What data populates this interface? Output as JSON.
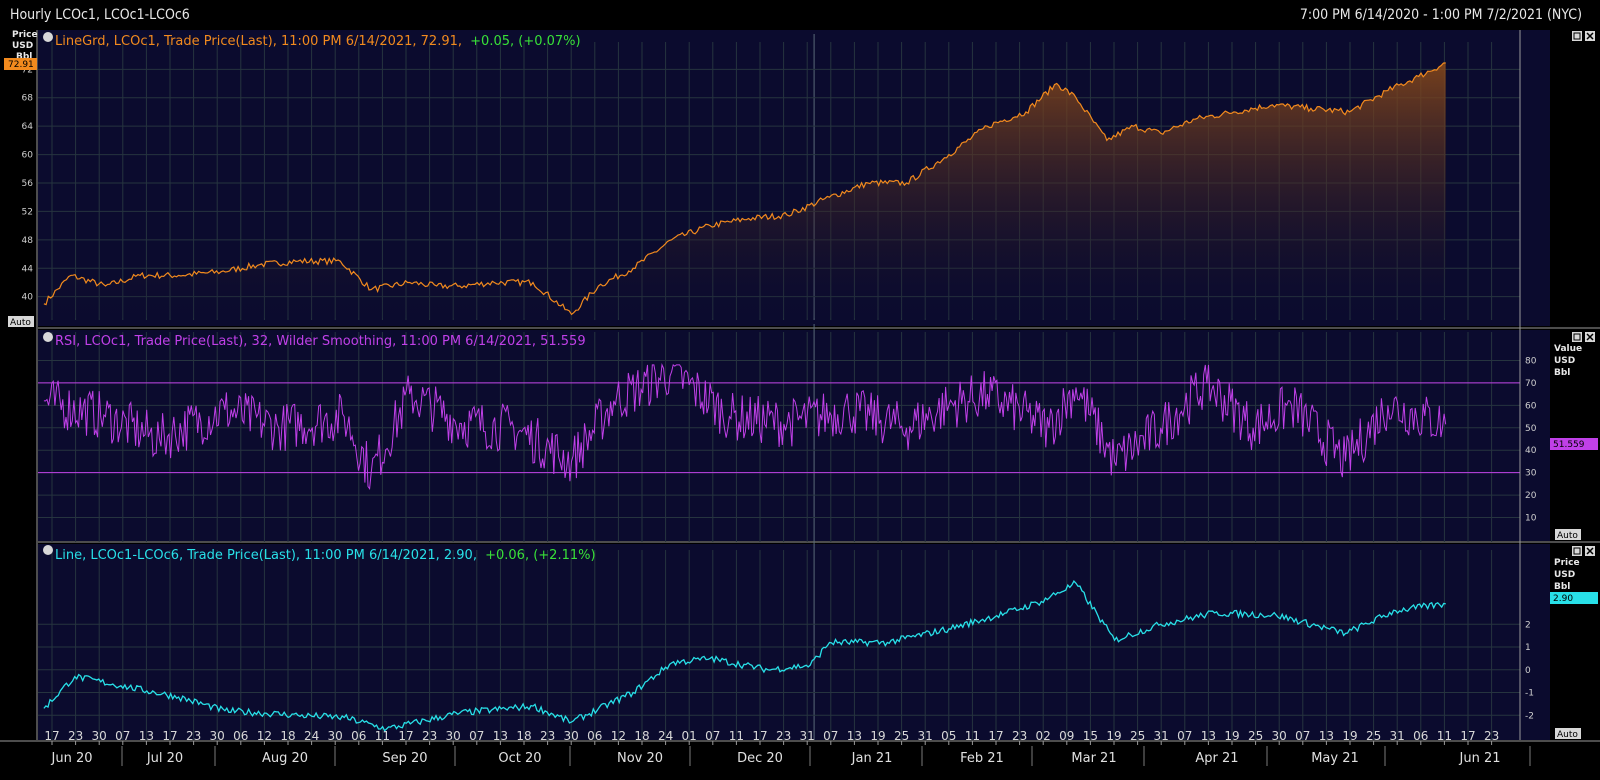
{
  "window": {
    "title": "Hourly LCOc1, LCOc1-LCOc6",
    "date_range": "7:00 PM 6/14/2020 - 1:00 PM 7/2/2021 (NYC)"
  },
  "colors": {
    "background": "#0b0b2e",
    "grid": "#2c3a4a",
    "price_line": "#f28a1e",
    "rsi_line": "#c040e8",
    "spread_line": "#28e0e8",
    "positive": "#38e038"
  },
  "icons": [
    "panel-settings-icon",
    "maximize-icon",
    "close-icon"
  ],
  "panels": {
    "price": {
      "legend_prefix": "LineGrd, LCOc1, Trade Price(Last), 11:00 PM 6/14/2021, 72.91,",
      "legend_change": "+0.05, (+0.07%)",
      "axis_title": [
        "Price",
        "USD",
        "Bbl"
      ],
      "last_value_label": "72.91",
      "auto_label": "Auto"
    },
    "rsi": {
      "legend": "RSI, LCOc1, Trade Price(Last),  32, Wilder Smoothing, 11:00 PM 6/14/2021, 51.559",
      "axis_title": [
        "Value",
        "USD",
        "Bbl"
      ],
      "last_value_label": "51.559",
      "auto_label": "Auto"
    },
    "spread": {
      "legend_prefix": "Line, LCOc1-LCOc6, Trade Price(Last), 11:00 PM 6/14/2021, 2.90,",
      "legend_change": "+0.06, (+2.11%)",
      "axis_title": [
        "Price",
        "USD",
        "Bbl"
      ],
      "last_value_label": "2.90",
      "auto_label": "Auto"
    }
  },
  "chart_data": [
    {
      "type": "area",
      "series": [
        {
          "name": "LCOc1",
          "color": "#f28a1e"
        }
      ],
      "ylim": [
        37,
        75
      ],
      "yticks": [
        40,
        44,
        48,
        52,
        56,
        60,
        64,
        68,
        72
      ],
      "x": [
        "2020-06-15",
        "2020-06-22",
        "2020-07-01",
        "2020-07-10",
        "2020-07-20",
        "2020-07-31",
        "2020-08-10",
        "2020-08-20",
        "2020-08-31",
        "2020-09-08",
        "2020-09-18",
        "2020-09-25",
        "2020-10-01",
        "2020-10-10",
        "2020-10-20",
        "2020-10-30",
        "2020-11-06",
        "2020-11-15",
        "2020-11-25",
        "2020-12-05",
        "2020-12-15",
        "2020-12-25",
        "2021-01-05",
        "2021-01-15",
        "2021-01-25",
        "2021-02-05",
        "2021-02-15",
        "2021-02-25",
        "2021-03-05",
        "2021-03-10",
        "2021-03-18",
        "2021-03-25",
        "2021-04-01",
        "2021-04-10",
        "2021-04-20",
        "2021-04-30",
        "2021-05-10",
        "2021-05-20",
        "2021-05-30",
        "2021-06-07",
        "2021-06-14"
      ],
      "values": [
        39,
        43,
        41.5,
        43,
        43,
        43.5,
        44.5,
        45,
        45,
        41,
        42,
        41.5,
        41.5,
        42,
        42,
        37.5,
        41.5,
        44,
        48,
        50,
        51,
        51.5,
        54,
        56,
        56,
        60,
        64,
        66,
        70,
        68,
        62,
        64,
        63,
        65,
        66,
        67,
        66.5,
        66,
        69,
        71,
        72.91
      ]
    },
    {
      "type": "line",
      "series": [
        {
          "name": "RSI",
          "color": "#c040e8"
        }
      ],
      "ylim": [
        0,
        90
      ],
      "yticks": [
        10,
        20,
        30,
        40,
        50,
        60,
        70,
        80
      ],
      "reference_lines": [
        30,
        70
      ],
      "x": [
        "2020-06-15",
        "2020-07-01",
        "2020-07-15",
        "2020-08-01",
        "2020-08-15",
        "2020-09-01",
        "2020-09-08",
        "2020-09-18",
        "2020-10-01",
        "2020-10-15",
        "2020-10-30",
        "2020-11-10",
        "2020-11-25",
        "2020-12-10",
        "2020-12-25",
        "2021-01-10",
        "2021-01-25",
        "2021-02-05",
        "2021-02-15",
        "2021-03-03",
        "2021-03-10",
        "2021-03-20",
        "2021-04-01",
        "2021-04-13",
        "2021-04-25",
        "2021-05-05",
        "2021-05-19",
        "2021-05-30",
        "2021-06-14"
      ],
      "values": [
        62,
        55,
        45,
        58,
        50,
        55,
        30,
        65,
        52,
        50,
        35,
        62,
        75,
        55,
        52,
        58,
        50,
        60,
        65,
        50,
        68,
        35,
        50,
        70,
        50,
        60,
        35,
        60,
        51.559
      ]
    },
    {
      "type": "line",
      "series": [
        {
          "name": "LCOc1-LCOc6",
          "color": "#28e0e8"
        }
      ],
      "ylim": [
        -3,
        5
      ],
      "yticks": [
        -2,
        -1,
        0,
        1,
        2
      ],
      "x": [
        "2020-06-15",
        "2020-06-23",
        "2020-07-05",
        "2020-07-20",
        "2020-08-01",
        "2020-08-20",
        "2020-09-01",
        "2020-09-12",
        "2020-10-01",
        "2020-10-20",
        "2020-10-30",
        "2020-11-15",
        "2020-11-25",
        "2020-12-05",
        "2020-12-20",
        "2020-12-31",
        "2021-01-05",
        "2021-01-20",
        "2021-02-05",
        "2021-02-20",
        "2021-03-01",
        "2021-03-10",
        "2021-03-20",
        "2021-04-01",
        "2021-04-15",
        "2021-05-01",
        "2021-05-19",
        "2021-06-01",
        "2021-06-14"
      ],
      "values": [
        -1.7,
        -0.3,
        -0.7,
        -1.2,
        -1.8,
        -2.0,
        -2.1,
        -2.6,
        -1.9,
        -1.6,
        -2.3,
        -1.0,
        0.3,
        0.5,
        0.0,
        0.2,
        1.2,
        1.2,
        1.8,
        2.5,
        3.0,
        3.8,
        1.3,
        2.0,
        2.5,
        2.4,
        1.6,
        2.6,
        2.9
      ]
    }
  ],
  "x_axis": {
    "day_ticks": [
      "17",
      "23",
      "30",
      "07",
      "13",
      "17",
      "23",
      "30",
      "06",
      "12",
      "18",
      "24",
      "30",
      "06",
      "11",
      "17",
      "23",
      "30",
      "07",
      "13",
      "18",
      "23",
      "30",
      "06",
      "12",
      "18",
      "24",
      "01",
      "07",
      "11",
      "17",
      "23",
      "31",
      "07",
      "13",
      "19",
      "25",
      "31",
      "05",
      "11",
      "17",
      "23",
      "02",
      "09",
      "15",
      "19",
      "25",
      "31",
      "07",
      "13",
      "19",
      "25",
      "30",
      "07",
      "13",
      "19",
      "25",
      "31",
      "06",
      "11",
      "17",
      "23",
      "30"
    ],
    "months": [
      "Jun 20",
      "Jul 20",
      "Aug 20",
      "Sep 20",
      "Oct 20",
      "Nov 20",
      "Dec 20",
      "Jan 21",
      "Feb 21",
      "Mar 21",
      "Apr 21",
      "May 21",
      "Jun 21"
    ]
  }
}
